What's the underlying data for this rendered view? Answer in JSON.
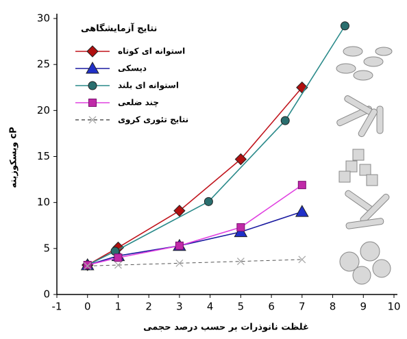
{
  "chart_data": {
    "type": "line",
    "legend_title": "نتایج آزمایشگاهی",
    "x_label": "غلظت نانوذرات بر حسب درصد حجمی",
    "y_label": "ویسکوزیته cP",
    "xlim": [
      -1,
      10
    ],
    "xticks": [
      -1,
      0,
      1,
      2,
      3,
      4,
      5,
      6,
      7,
      8,
      9,
      10
    ],
    "ylim": [
      0,
      30
    ],
    "yticks": [
      0,
      5,
      10,
      15,
      20,
      25,
      30
    ],
    "legend": "upper left",
    "series": [
      {
        "name": "استوانه ای کوتاه",
        "color": "#c0141c",
        "marker": "diamond",
        "marker_color": "#b01010",
        "dashed": false,
        "x": [
          0,
          1,
          3,
          5,
          7
        ],
        "values": [
          3.2,
          5.1,
          9.1,
          14.7,
          22.5
        ]
      },
      {
        "name": "دیسکی",
        "color": "#1a1aa0",
        "marker": "triangle",
        "marker_color": "#2030c8",
        "dashed": false,
        "x": [
          0,
          1,
          3,
          5,
          7
        ],
        "values": [
          3.2,
          4.2,
          5.3,
          6.8,
          9.0
        ]
      },
      {
        "name": "استوانه ای بلند",
        "color": "#2a8a8a",
        "marker": "circle",
        "marker_color": "#2a6e6e",
        "dashed": false,
        "x": [
          0,
          0.9,
          3.95,
          6.45,
          8.4
        ],
        "values": [
          3.2,
          4.7,
          10.1,
          18.9,
          29.2
        ]
      },
      {
        "name": "چند ضلعی",
        "color": "#e040e0",
        "marker": "square",
        "marker_color": "#c02aa8",
        "dashed": false,
        "x": [
          0,
          1,
          3,
          5,
          7
        ],
        "values": [
          3.2,
          4.0,
          5.3,
          7.3,
          11.9
        ]
      },
      {
        "name": "نتایج تئوری کروی",
        "color": "#555555",
        "marker": "x",
        "marker_color": "#aaaaaa",
        "dashed": true,
        "x": [
          0,
          1,
          3,
          5,
          7
        ],
        "values": [
          3.1,
          3.2,
          3.4,
          3.6,
          3.8
        ]
      }
    ]
  }
}
